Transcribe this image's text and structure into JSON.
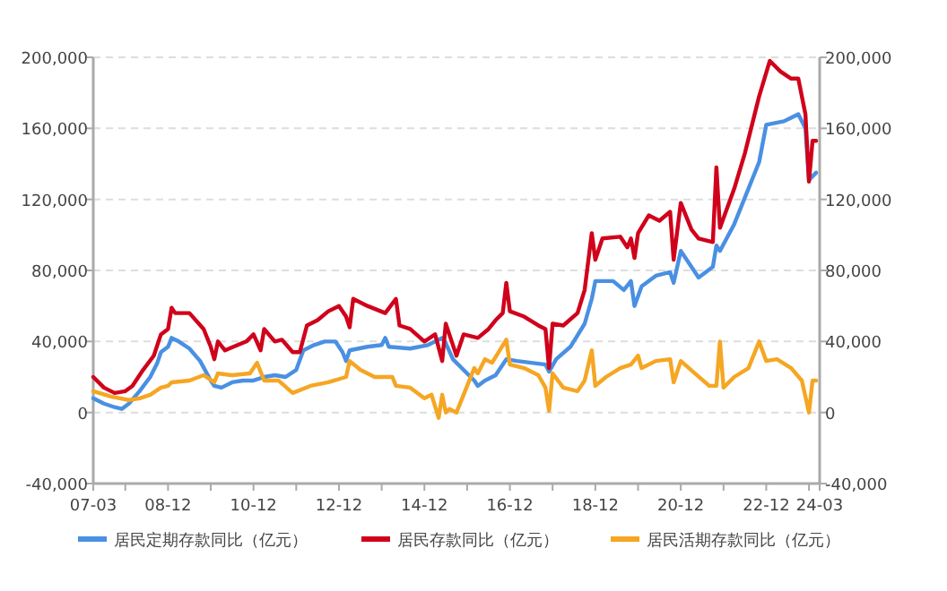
{
  "chart_data": {
    "type": "line",
    "series": [
      {
        "name": "居民定期存款同比（亿元）",
        "color": "#4a90e2",
        "x": [
          "2007-03",
          "2007-06",
          "2007-09",
          "2007-11",
          "2008-01",
          "2008-04",
          "2008-07",
          "2008-09",
          "2008-10",
          "2008-12",
          "2009-01",
          "2009-03",
          "2009-06",
          "2009-09",
          "2009-12",
          "2010-01",
          "2010-03",
          "2010-06",
          "2010-09",
          "2010-12",
          "2011-03",
          "2011-06",
          "2011-09",
          "2011-12",
          "2012-02",
          "2012-05",
          "2012-08",
          "2012-11",
          "2013-01",
          "2013-02",
          "2013-03",
          "2013-08",
          "2013-12",
          "2014-01",
          "2014-02",
          "2014-08",
          "2015-01",
          "2015-05",
          "2015-06",
          "2015-08",
          "2016-02",
          "2016-03",
          "2016-05",
          "2016-08",
          "2016-11",
          "2017-02",
          "2017-06",
          "2017-10",
          "2017-11",
          "2018-01",
          "2018-05",
          "2018-09",
          "2018-11",
          "2018-12",
          "2019-05",
          "2019-08",
          "2019-10",
          "2019-11",
          "2020-01",
          "2020-05",
          "2020-09",
          "2020-10",
          "2020-12",
          "2021-04",
          "2021-05",
          "2021-09",
          "2021-10",
          "2021-11",
          "2022-03",
          "2022-06",
          "2022-10",
          "2022-12",
          "2023-05",
          "2023-07",
          "2023-09",
          "2023-11",
          "2023-12",
          "2024-02"
        ],
        "values": [
          8000,
          5000,
          3000,
          2000,
          5000,
          12000,
          20000,
          28000,
          34000,
          37000,
          42000,
          40000,
          36000,
          29000,
          18000,
          15000,
          14000,
          17000,
          18000,
          18000,
          20000,
          21000,
          20000,
          24000,
          35000,
          38000,
          40000,
          40000,
          34000,
          29000,
          35000,
          37000,
          38000,
          42000,
          37000,
          36000,
          38000,
          42000,
          39000,
          30000,
          18000,
          15000,
          18000,
          21000,
          30000,
          29000,
          28000,
          27000,
          23000,
          30000,
          37000,
          50000,
          64000,
          74000,
          74000,
          69000,
          74000,
          60000,
          71000,
          77000,
          79000,
          73000,
          91000,
          79000,
          76000,
          82000,
          94000,
          91000,
          106000,
          121000,
          141000,
          162000,
          164000,
          166000,
          168000,
          160000,
          131000,
          135000
        ]
      },
      {
        "name": "居民存款同比（亿元）",
        "color": "#d0021b",
        "x": [
          "2007-03",
          "2007-06",
          "2007-09",
          "2007-12",
          "2008-02",
          "2008-05",
          "2008-08",
          "2008-10",
          "2008-12",
          "2009-01",
          "2009-02",
          "2009-06",
          "2009-10",
          "2009-12",
          "2010-01",
          "2010-02",
          "2010-04",
          "2010-10",
          "2010-12",
          "2011-02",
          "2011-03",
          "2011-06",
          "2011-08",
          "2011-11",
          "2012-01",
          "2012-03",
          "2012-06",
          "2012-09",
          "2012-12",
          "2013-02",
          "2013-03",
          "2013-04",
          "2013-08",
          "2014-01",
          "2014-04",
          "2014-05",
          "2014-08",
          "2014-12",
          "2015-03",
          "2015-05",
          "2015-06",
          "2015-07",
          "2015-09",
          "2015-11",
          "2016-03",
          "2016-06",
          "2016-08",
          "2016-10",
          "2016-11",
          "2016-12",
          "2017-04",
          "2017-08",
          "2017-10",
          "2017-11",
          "2017-12",
          "2018-03",
          "2018-07",
          "2018-09",
          "2018-11",
          "2018-12",
          "2019-02",
          "2019-07",
          "2019-09",
          "2019-10",
          "2019-11",
          "2019-12",
          "2020-03",
          "2020-06",
          "2020-09",
          "2020-10",
          "2020-12",
          "2021-03",
          "2021-05",
          "2021-09",
          "2021-10",
          "2021-11",
          "2022-03",
          "2022-06",
          "2022-10",
          "2023-01",
          "2023-04",
          "2023-07",
          "2023-09",
          "2023-11",
          "2023-12",
          "2024-01",
          "2024-02"
        ],
        "values": [
          20000,
          14000,
          11000,
          12000,
          15000,
          24000,
          32000,
          44000,
          47000,
          59000,
          56000,
          56000,
          47000,
          37000,
          30000,
          40000,
          35000,
          40000,
          44000,
          35000,
          47000,
          40000,
          41000,
          34000,
          34000,
          49000,
          52000,
          57000,
          60000,
          54000,
          48000,
          64000,
          60000,
          56000,
          64000,
          49000,
          47000,
          40000,
          44000,
          29000,
          50000,
          44000,
          32000,
          44000,
          42000,
          47000,
          52000,
          56000,
          73000,
          57000,
          54000,
          49000,
          47000,
          25000,
          50000,
          49000,
          56000,
          69000,
          101000,
          86000,
          98000,
          99000,
          93000,
          98000,
          87000,
          101000,
          111000,
          108000,
          113000,
          86000,
          118000,
          103000,
          98000,
          96000,
          138000,
          104000,
          126000,
          146000,
          178000,
          198000,
          192000,
          188000,
          188000,
          168000,
          130000,
          153000,
          153000
        ]
      },
      {
        "name": "居民活期存款同比（亿元）",
        "color": "#f5a623",
        "x": [
          "2007-03",
          "2007-08",
          "2008-01",
          "2008-04",
          "2008-07",
          "2008-10",
          "2008-12",
          "2009-01",
          "2009-06",
          "2009-10",
          "2010-01",
          "2010-02",
          "2010-06",
          "2010-11",
          "2011-01",
          "2011-03",
          "2011-07",
          "2011-11",
          "2012-04",
          "2012-09",
          "2013-02",
          "2013-03",
          "2013-06",
          "2013-10",
          "2014-03",
          "2014-04",
          "2014-08",
          "2014-12",
          "2015-02",
          "2015-04",
          "2015-05",
          "2015-06",
          "2015-07",
          "2015-09",
          "2015-11",
          "2016-02",
          "2016-03",
          "2016-05",
          "2016-07",
          "2016-11",
          "2016-12",
          "2017-04",
          "2017-08",
          "2017-10",
          "2017-11",
          "2017-12",
          "2018-03",
          "2018-07",
          "2018-09",
          "2018-11",
          "2018-12",
          "2019-03",
          "2019-07",
          "2019-10",
          "2019-12",
          "2020-01",
          "2020-05",
          "2020-09",
          "2020-10",
          "2020-12",
          "2021-04",
          "2021-08",
          "2021-10",
          "2021-11",
          "2021-12",
          "2022-03",
          "2022-07",
          "2022-10",
          "2022-12",
          "2023-03",
          "2023-07",
          "2023-10",
          "2023-12",
          "2024-01",
          "2024-02"
        ],
        "values": [
          12000,
          9000,
          7000,
          8000,
          10000,
          14000,
          15000,
          17000,
          18000,
          21000,
          17000,
          22000,
          21000,
          22000,
          28000,
          18000,
          18000,
          11000,
          15000,
          17000,
          20000,
          29000,
          24000,
          20000,
          20000,
          15000,
          14000,
          8000,
          10000,
          -3000,
          10000,
          0,
          2000,
          0,
          10000,
          25000,
          22000,
          30000,
          28000,
          41000,
          27000,
          25000,
          21000,
          14000,
          1000,
          22000,
          14000,
          12000,
          18000,
          35000,
          15000,
          20000,
          25000,
          27000,
          32000,
          25000,
          29000,
          30000,
          17000,
          29000,
          22000,
          15000,
          15000,
          40000,
          14000,
          20000,
          25000,
          40000,
          29000,
          30000,
          25000,
          18000,
          0,
          18000,
          18000
        ]
      }
    ],
    "xlim": [
      "2007-03",
      "2024-03"
    ],
    "xticks": [
      {
        "value": "2007-03",
        "label": "07-03"
      },
      {
        "value": "2007-12",
        "label": null
      },
      {
        "value": "2008-12",
        "label": "08-12"
      },
      {
        "value": "2009-12",
        "label": null
      },
      {
        "value": "2010-12",
        "label": "10-12"
      },
      {
        "value": "2011-12",
        "label": null
      },
      {
        "value": "2012-12",
        "label": "12-12"
      },
      {
        "value": "2013-12",
        "label": null
      },
      {
        "value": "2014-12",
        "label": "14-12"
      },
      {
        "value": "2015-12",
        "label": null
      },
      {
        "value": "2016-12",
        "label": "16-12"
      },
      {
        "value": "2017-12",
        "label": null
      },
      {
        "value": "2018-12",
        "label": "18-12"
      },
      {
        "value": "2019-12",
        "label": null
      },
      {
        "value": "2020-12",
        "label": "20-12"
      },
      {
        "value": "2021-12",
        "label": null
      },
      {
        "value": "2022-12",
        "label": "22-12"
      },
      {
        "value": "2023-12",
        "label": null
      },
      {
        "value": "2024-03",
        "label": "24-03"
      }
    ],
    "ylim": [
      -40000,
      200000
    ],
    "yticks": [
      {
        "value": -40000,
        "label": "-40,000"
      },
      {
        "value": 0,
        "label": "0"
      },
      {
        "value": 40000,
        "label": "40,000"
      },
      {
        "value": 80000,
        "label": "80,000"
      },
      {
        "value": 120000,
        "label": "120,000"
      },
      {
        "value": 160000,
        "label": "160,000"
      },
      {
        "value": 200000,
        "label": "200,000"
      }
    ],
    "y2lim": [
      -40000,
      200000
    ],
    "y2ticks": [
      {
        "value": -40000,
        "label": "-40,000"
      },
      {
        "value": 0,
        "label": "0"
      },
      {
        "value": 40000,
        "label": "40,000"
      },
      {
        "value": 80000,
        "label": "80,000"
      },
      {
        "value": 120000,
        "label": "120,000"
      },
      {
        "value": 160000,
        "label": "160,000"
      },
      {
        "value": 200000,
        "label": "200,000"
      }
    ],
    "grid": "y",
    "legend": "bottom",
    "marker": "none",
    "line_style": "solid"
  }
}
